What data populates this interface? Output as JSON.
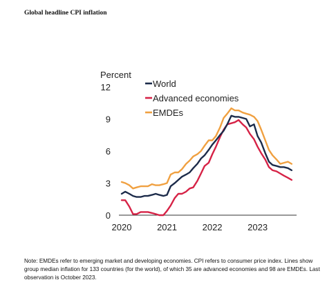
{
  "figure_title": "Global headline CPI inflation",
  "note": "Note: EMDEs refer to emerging market and developing economies. CPI refers to consumer price index. Lines show group median inflation for 133 countries (for the world), of which 35 are advanced economies and 98 are EMDEs. Last observation is October 2023.",
  "chart_data": {
    "type": "line",
    "ylabel": "Percent",
    "ylim": [
      0,
      12
    ],
    "yticks": [
      0,
      3,
      6,
      9,
      12
    ],
    "xticks": [
      "2020",
      "2021",
      "2022",
      "2023"
    ],
    "xticks_values": [
      2020.0,
      2021.0,
      2022.0,
      2023.0
    ],
    "xlim": [
      2020.0,
      2023.83
    ],
    "grid": false,
    "legend_position": "top-left",
    "x": [
      2020.0,
      2020.08,
      2020.17,
      2020.25,
      2020.33,
      2020.42,
      2020.5,
      2020.58,
      2020.67,
      2020.75,
      2020.83,
      2020.92,
      2021.0,
      2021.08,
      2021.17,
      2021.25,
      2021.33,
      2021.42,
      2021.5,
      2021.58,
      2021.67,
      2021.75,
      2021.83,
      2021.92,
      2022.0,
      2022.08,
      2022.17,
      2022.25,
      2022.33,
      2022.42,
      2022.5,
      2022.58,
      2022.67,
      2022.75,
      2022.83,
      2022.92,
      2023.0,
      2023.08,
      2023.17,
      2023.25,
      2023.33,
      2023.42,
      2023.5,
      2023.58,
      2023.67,
      2023.75
    ],
    "series": [
      {
        "name": "World",
        "color": "#1c2b4a",
        "values": [
          2.0,
          2.2,
          2.0,
          1.8,
          1.7,
          1.7,
          1.8,
          1.8,
          1.9,
          2.0,
          1.9,
          1.8,
          1.9,
          2.7,
          3.0,
          3.3,
          3.6,
          3.8,
          4.0,
          4.4,
          4.8,
          5.3,
          5.6,
          6.1,
          6.6,
          7.0,
          7.5,
          7.9,
          8.5,
          9.3,
          9.2,
          9.2,
          9.1,
          9.0,
          8.3,
          8.5,
          7.4,
          6.8,
          5.8,
          5.0,
          4.7,
          4.6,
          4.5,
          4.5,
          4.4,
          4.2
        ]
      },
      {
        "name": "Advanced economies",
        "color": "#d62246",
        "values": [
          1.4,
          1.4,
          0.8,
          0.1,
          0.1,
          0.3,
          0.3,
          0.3,
          0.2,
          0.1,
          0.0,
          0.0,
          0.4,
          0.9,
          1.6,
          2.0,
          2.0,
          2.2,
          2.5,
          2.6,
          3.2,
          3.9,
          4.6,
          4.9,
          5.7,
          6.4,
          7.3,
          8.0,
          8.5,
          8.6,
          8.7,
          8.9,
          8.5,
          8.2,
          7.6,
          7.1,
          6.4,
          5.8,
          5.2,
          4.5,
          4.2,
          4.1,
          3.9,
          3.7,
          3.5,
          3.3
        ]
      },
      {
        "name": "EMDEs",
        "color": "#f0a040",
        "values": [
          3.1,
          3.0,
          2.8,
          2.5,
          2.6,
          2.7,
          2.7,
          2.7,
          2.9,
          2.8,
          2.8,
          2.9,
          3.0,
          3.8,
          4.0,
          4.0,
          4.3,
          4.8,
          5.1,
          5.5,
          5.7,
          6.0,
          6.5,
          7.0,
          7.0,
          7.4,
          8.2,
          9.1,
          9.5,
          10.0,
          9.8,
          9.8,
          9.6,
          9.5,
          9.4,
          9.2,
          8.8,
          8.0,
          7.0,
          6.1,
          5.6,
          5.2,
          4.8,
          4.9,
          5.0,
          4.8
        ]
      }
    ]
  }
}
